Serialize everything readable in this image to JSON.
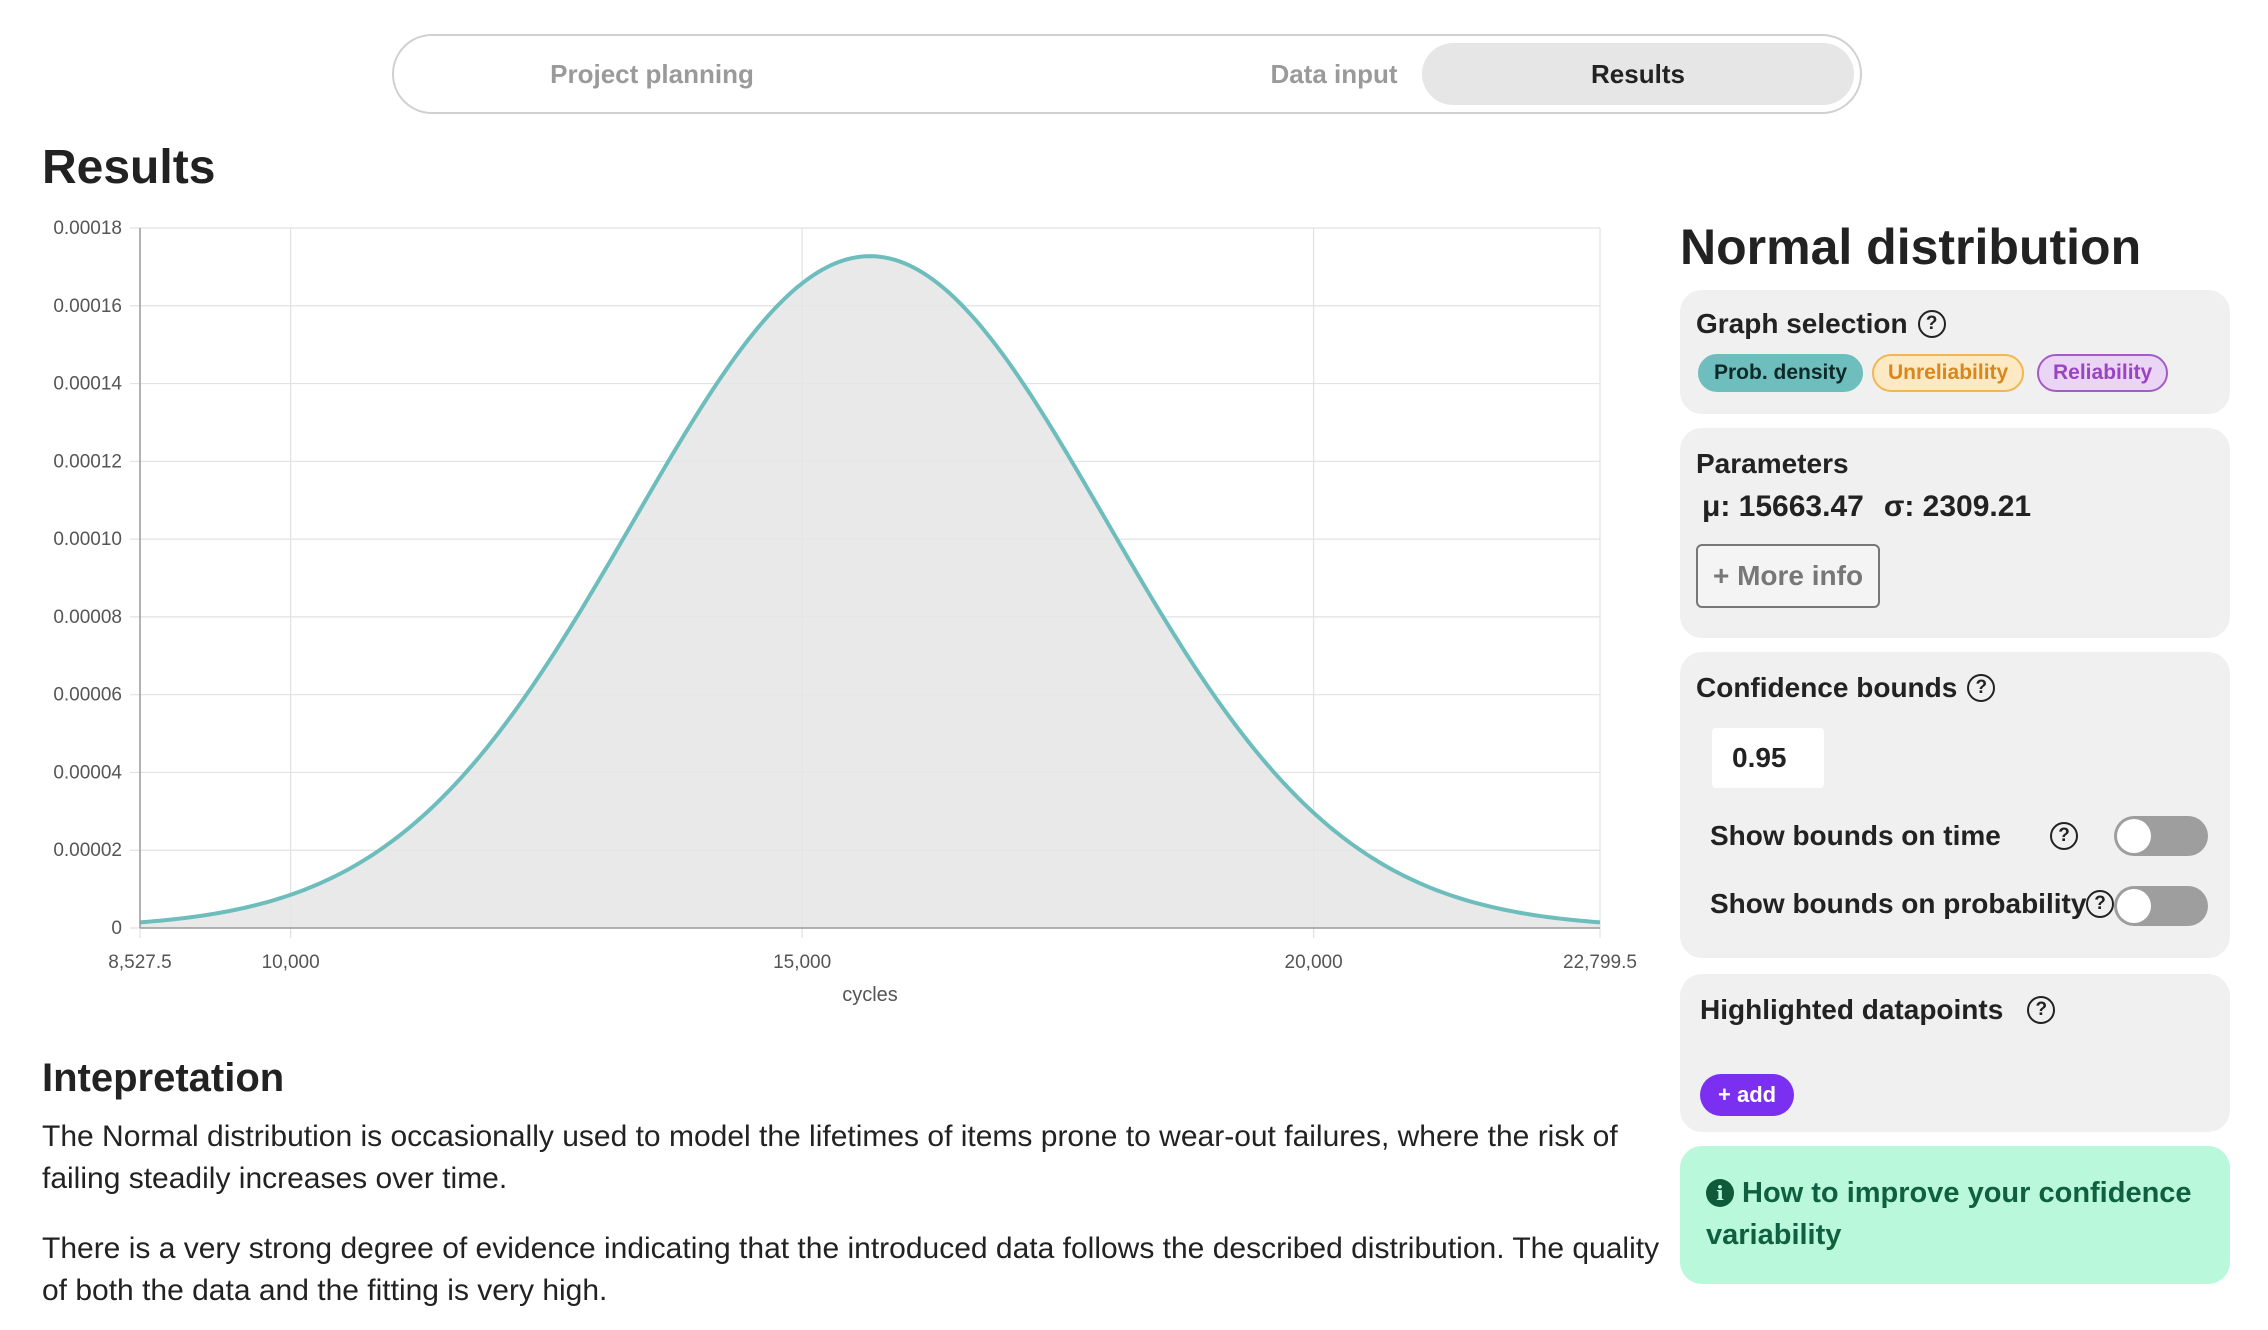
{
  "stepper": {
    "tabs": [
      {
        "label": "Project planning",
        "active": false
      },
      {
        "label": "Data input",
        "active": false
      },
      {
        "label": "Results",
        "active": true
      }
    ]
  },
  "page": {
    "title": "Results"
  },
  "chart_data": {
    "type": "area",
    "distribution": "Normal",
    "mu": 15663.47,
    "sigma": 2309.21,
    "xlabel": "cycles",
    "ylabel": "",
    "xlim": [
      8527.5,
      22799.5
    ],
    "ylim": [
      0,
      0.00018
    ],
    "x_ticks": [
      {
        "value": 8527.5,
        "label": "8,527.5"
      },
      {
        "value": 10000,
        "label": "10,000"
      },
      {
        "value": 15000,
        "label": "15,000"
      },
      {
        "value": 20000,
        "label": "20,000"
      },
      {
        "value": 22799.5,
        "label": "22,799.5"
      }
    ],
    "y_ticks": [
      {
        "value": 0,
        "label": "0"
      },
      {
        "value": 2e-05,
        "label": "0.00002"
      },
      {
        "value": 4e-05,
        "label": "0.00004"
      },
      {
        "value": 6e-05,
        "label": "0.00006"
      },
      {
        "value": 8e-05,
        "label": "0.00008"
      },
      {
        "value": 0.0001,
        "label": "0.00010"
      },
      {
        "value": 0.00012,
        "label": "0.00012"
      },
      {
        "value": 0.00014,
        "label": "0.00014"
      },
      {
        "value": 0.00016,
        "label": "0.00016"
      },
      {
        "value": 0.00018,
        "label": "0.00018"
      }
    ],
    "series": [
      {
        "color": "#6dbdbd",
        "fill": "#e5e5e5"
      }
    ],
    "grid": true
  },
  "interpretation": {
    "title": "Intepretation",
    "p1": "The Normal distribution is occasionally used to model the lifetimes of items prone to wear-out failures, where the risk of failing steadily increases over time.",
    "p2": "There is a very strong degree of evidence indicating that the introduced data follows the described distribution. The quality of both the data and the fitting is very high."
  },
  "panel": {
    "title": "Normal distribution",
    "graph_selection": {
      "label": "Graph selection",
      "chips": [
        "Prob. density",
        "Unreliability",
        "Reliability"
      ]
    },
    "parameters": {
      "label": "Parameters",
      "mu": "μ: 15663.47",
      "sigma": "σ: 2309.21",
      "more_info": "+ More info"
    },
    "confidence": {
      "label": "Confidence bounds",
      "value": "0.95",
      "bounds_time": "Show bounds on time",
      "bounds_prob": "Show bounds on probability",
      "bounds_time_on": false,
      "bounds_prob_on": false
    },
    "highlighted": {
      "label": "Highlighted datapoints",
      "add": "+ add"
    },
    "tip": "How to improve your confidence variability"
  },
  "colors": {
    "accent_teal": "#6dbdbd",
    "accent_purple": "#7b2ff0",
    "tip_bg": "#b9f8da",
    "tip_text": "#0f6040"
  }
}
